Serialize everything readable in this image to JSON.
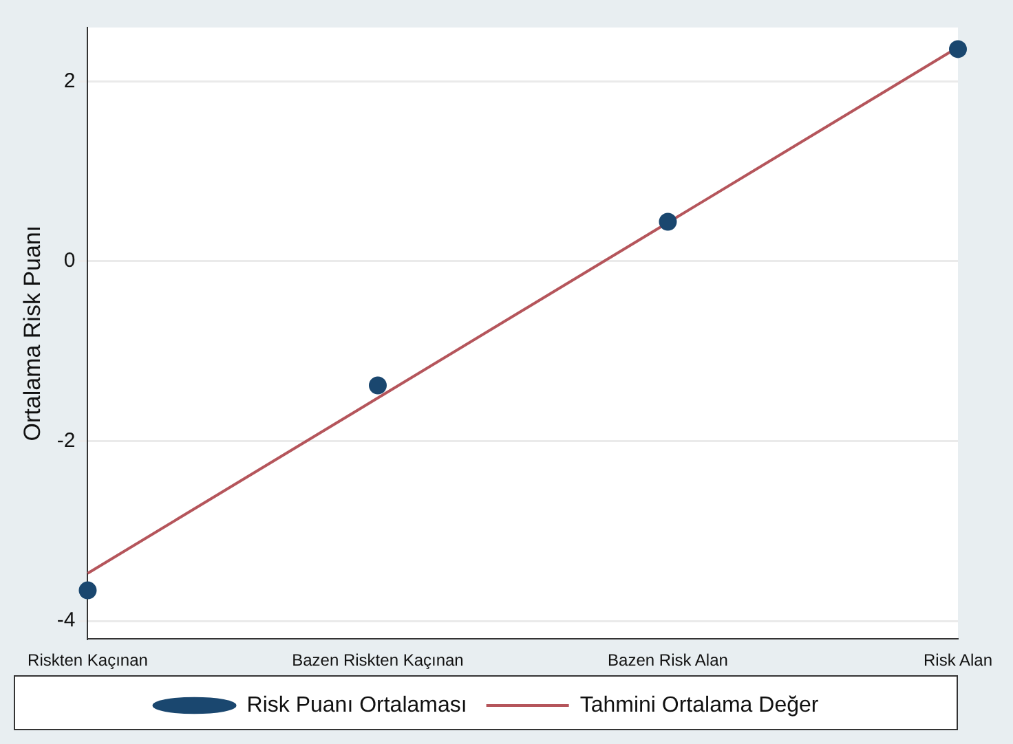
{
  "chart_data": {
    "type": "scatter",
    "ylabel": "Ortalama Risk Puanı",
    "categories": [
      "Riskten Kaçınan",
      "Bazen Riskten Kaçınan",
      "Bazen Risk Alan",
      "Risk Alan"
    ],
    "series": [
      {
        "name": "Risk Puanı Ortalaması",
        "color": "#1a476f",
        "marker": "circle",
        "values": [
          -3.66,
          -1.38,
          0.44,
          2.36
        ]
      },
      {
        "name": "Tahmini Ortalama Değer",
        "type": "line",
        "color": "#b5555b",
        "marker": "none",
        "values": [
          -3.47,
          -1.52,
          0.43,
          2.38
        ]
      }
    ],
    "ylim": [
      -4.2,
      2.6
    ],
    "yticks": [
      -4,
      -2,
      0,
      2
    ],
    "grid": "y",
    "legend": "bottom"
  }
}
